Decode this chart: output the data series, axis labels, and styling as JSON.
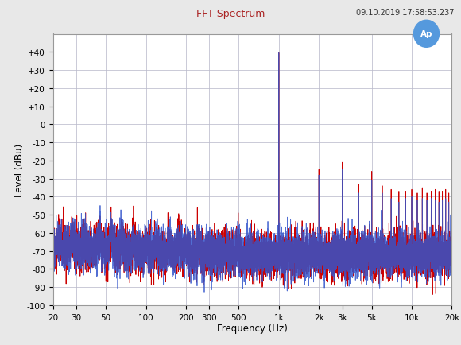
{
  "title": "FFT Spectrum",
  "timestamp": "09.10.2019 17:58:53.237",
  "xlabel": "Frequency (Hz)",
  "ylabel": "Level (dBu)",
  "xlim": [
    20,
    20000
  ],
  "ylim": [
    -100,
    50
  ],
  "yticks": [
    -100,
    -90,
    -80,
    -70,
    -60,
    -50,
    -40,
    -30,
    -20,
    -10,
    0,
    10,
    20,
    30,
    40
  ],
  "xtick_labels": [
    "20",
    "30",
    "50",
    "100",
    "200",
    "300",
    "500",
    "1k",
    "2k",
    "3k",
    "5k",
    "10k",
    "20k"
  ],
  "xtick_values": [
    20,
    30,
    50,
    100,
    200,
    300,
    500,
    1000,
    2000,
    3000,
    5000,
    10000,
    20000
  ],
  "color_red": "#CC0000",
  "color_blue": "#3355CC",
  "background_color": "#E8E8E8",
  "plot_bg_color": "#FFFFFF",
  "grid_color": "#BBBBCC",
  "fundamental_level": 39.5,
  "noise_floor_mean": -72,
  "noise_std": 6,
  "n_freqs": 8000
}
